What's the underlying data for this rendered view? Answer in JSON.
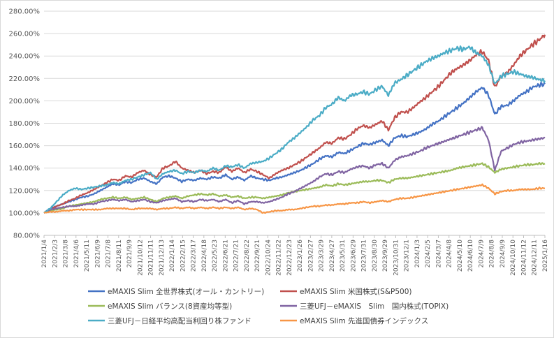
{
  "chart_data": {
    "type": "line",
    "title": "",
    "xlabel": "",
    "ylabel": "",
    "ylim": [
      80,
      280
    ],
    "y_ticks": [
      "80.00%",
      "100.00%",
      "120.00%",
      "140.00%",
      "160.00%",
      "180.00%",
      "200.00%",
      "220.00%",
      "240.00%",
      "260.00%",
      "280.00%"
    ],
    "grid": "horizontal",
    "legend_position": "bottom",
    "x_tick_labels": [
      "2021/1/4",
      "2021/2/3",
      "2021/3/8",
      "2021/4/6",
      "2021/5/11",
      "2021/6/9",
      "2021/7/8",
      "2021/8/11",
      "2021/9/9",
      "2021/10/12",
      "2021/11/11",
      "2021/12/13",
      "2022/1/14",
      "2022/2/15",
      "2022/3/17",
      "2022/4/18",
      "2022/5/23",
      "2022/6/21",
      "2022/7/21",
      "2022/8/22",
      "2022/9/21",
      "2022/10/24",
      "2022/11/22",
      "2022/12/23",
      "2023/1/26",
      "2023/2/27",
      "2023/3/29",
      "2023/4/27",
      "2023/5/31",
      "2023/6/29",
      "2023/7/31",
      "2023/8/30",
      "2023/9/29",
      "2023/10/31",
      "2023/12/1",
      "2024/1/3",
      "2024/2/5",
      "2024/3/7",
      "2024/4/8",
      "2024/5/10",
      "2024/6/10",
      "2024/7/9",
      "2024/8/8",
      "2024/9/9",
      "2024/10/10",
      "2024/11/12",
      "2024/12/11",
      "2025/1/16"
    ],
    "series": [
      {
        "name": "eMAXIS Slim 全世界株式(オール・カントリー)",
        "color": "#4472c4",
        "values": [
          100,
          104,
          106,
          108,
          110,
          112,
          114,
          115,
          117,
          120,
          123,
          126,
          125,
          128,
          127,
          130,
          131,
          128,
          126,
          132,
          133,
          131,
          128,
          130,
          129,
          131,
          130,
          132,
          131,
          134,
          130,
          132,
          129,
          133,
          131,
          130,
          129,
          131,
          132,
          134,
          136,
          138,
          141,
          144,
          148,
          151,
          150,
          154,
          153,
          156,
          159,
          162,
          161,
          163,
          165,
          160,
          167,
          169,
          168,
          170,
          172,
          175,
          179,
          182,
          186,
          190,
          194,
          198,
          203,
          208,
          212,
          205,
          188,
          195,
          196,
          200,
          205,
          208,
          212,
          214,
          215
        ]
      },
      {
        "name": "eMAXIS Slim 米国株式(S&P500)",
        "color": "#c0504d",
        "values": [
          100,
          103,
          106,
          108,
          111,
          113,
          116,
          118,
          121,
          124,
          127,
          130,
          129,
          133,
          132,
          136,
          138,
          134,
          132,
          140,
          142,
          146,
          140,
          138,
          136,
          138,
          135,
          137,
          136,
          141,
          137,
          140,
          136,
          139,
          137,
          134,
          131,
          135,
          138,
          140,
          143,
          146,
          150,
          154,
          158,
          163,
          162,
          167,
          166,
          170,
          175,
          178,
          176,
          179,
          182,
          174,
          185,
          190,
          190,
          194,
          199,
          203,
          208,
          213,
          219,
          225,
          229,
          232,
          236,
          241,
          244,
          236,
          212,
          222,
          225,
          232,
          240,
          245,
          250,
          254,
          259
        ]
      },
      {
        "name": "eMAXIS Slim バランス(8資産均等型)",
        "color": "#9bbb59",
        "values": [
          100,
          102,
          103,
          104,
          106,
          107,
          108,
          109,
          110,
          112,
          113,
          114,
          113,
          114,
          112,
          113,
          114,
          112,
          110,
          113,
          114,
          115,
          113,
          115,
          116,
          117,
          116,
          117,
          115,
          116,
          114,
          115,
          113,
          114,
          114,
          113,
          114,
          115,
          116,
          118,
          119,
          120,
          121,
          122,
          123,
          125,
          124,
          126,
          125,
          126,
          127,
          128,
          128,
          129,
          129,
          127,
          130,
          131,
          131,
          132,
          133,
          134,
          135,
          136,
          137,
          138,
          140,
          141,
          142,
          143,
          144,
          141,
          136,
          139,
          140,
          141,
          142,
          143,
          143,
          144,
          144
        ]
      },
      {
        "name": "三菱UFJ－eMAXIS　Slim　国内株式(TOPIX)",
        "color": "#8064a2",
        "values": [
          100,
          103,
          104,
          105,
          106,
          106,
          107,
          108,
          108,
          110,
          111,
          112,
          111,
          112,
          110,
          111,
          112,
          110,
          109,
          111,
          112,
          113,
          110,
          111,
          110,
          112,
          111,
          112,
          110,
          112,
          109,
          111,
          108,
          110,
          110,
          109,
          110,
          112,
          114,
          117,
          119,
          122,
          125,
          128,
          132,
          135,
          134,
          137,
          136,
          139,
          141,
          142,
          140,
          143,
          144,
          140,
          147,
          150,
          151,
          153,
          155,
          158,
          160,
          162,
          164,
          166,
          168,
          170,
          172,
          174,
          176,
          165,
          138,
          155,
          158,
          161,
          163,
          164,
          165,
          166,
          167
        ]
      },
      {
        "name": "三菱UFJ－日経平均高配当利回り株ファンド",
        "color": "#4bacc6",
        "values": [
          100,
          104,
          110,
          116,
          120,
          122,
          121,
          122,
          123,
          124,
          125,
          127,
          126,
          129,
          130,
          132,
          134,
          136,
          130,
          135,
          137,
          138,
          135,
          137,
          136,
          138,
          137,
          140,
          138,
          142,
          141,
          143,
          140,
          144,
          145,
          146,
          149,
          153,
          157,
          163,
          167,
          172,
          177,
          183,
          187,
          194,
          197,
          203,
          200,
          205,
          206,
          208,
          206,
          210,
          213,
          205,
          216,
          219,
          223,
          227,
          231,
          235,
          238,
          240,
          243,
          245,
          247,
          246,
          248,
          243,
          240,
          232,
          215,
          222,
          224,
          226,
          224,
          222,
          221,
          219,
          218
        ]
      },
      {
        "name": "eMAXIS Slim 先進国債券インデックス",
        "color": "#f79646",
        "values": [
          100,
          101,
          101,
          102,
          102,
          103,
          103,
          103,
          103,
          103,
          104,
          104,
          104,
          104,
          103,
          104,
          104,
          104,
          103,
          104,
          104,
          105,
          104,
          105,
          104,
          105,
          104,
          105,
          104,
          105,
          104,
          105,
          103,
          104,
          103,
          100,
          101,
          102,
          102,
          103,
          103,
          104,
          105,
          106,
          106,
          107,
          107,
          108,
          108,
          109,
          109,
          110,
          109,
          110,
          111,
          110,
          112,
          113,
          113,
          114,
          115,
          116,
          117,
          118,
          119,
          120,
          121,
          122,
          123,
          124,
          125,
          122,
          117,
          119,
          120,
          120,
          121,
          121,
          121,
          122,
          122
        ]
      }
    ]
  }
}
